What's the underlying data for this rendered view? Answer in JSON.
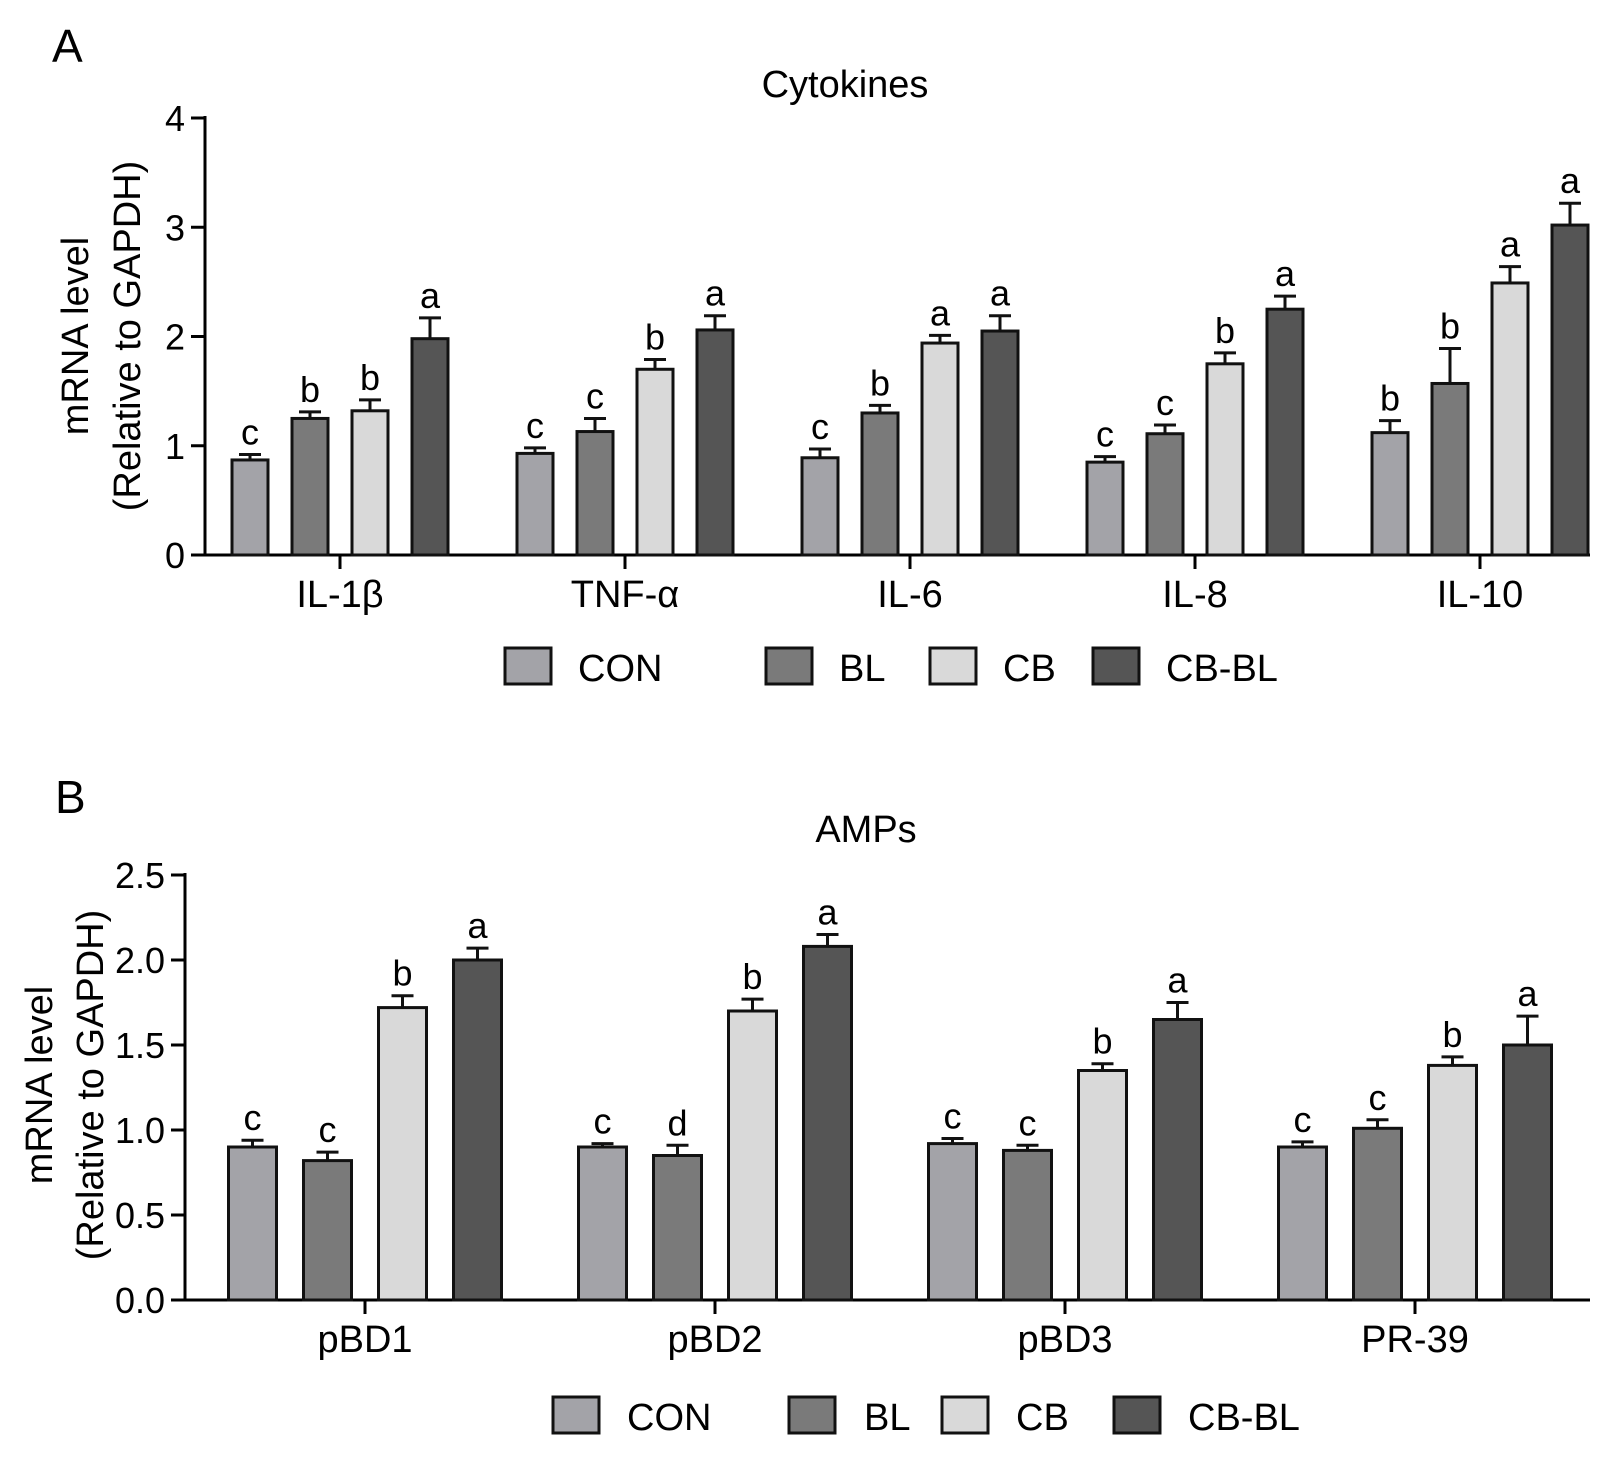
{
  "chart_data": [
    {
      "type": "bar",
      "panel_label": "A",
      "title": "Cytokines",
      "ylabel_line1": "mRNA level",
      "ylabel_line2": "(Relative to GAPDH)",
      "xlabel": "",
      "ylim": [
        0,
        4
      ],
      "yticks": [
        "0",
        "1",
        "2",
        "3",
        "4"
      ],
      "categories": [
        "IL-1β",
        "TNF-α",
        "IL-6",
        "IL-8",
        "IL-10"
      ],
      "series": [
        {
          "name": "CON",
          "color": "#a3a3a8",
          "values": [
            0.87,
            0.93,
            0.89,
            0.85,
            1.12
          ],
          "errors": [
            0.05,
            0.05,
            0.08,
            0.05,
            0.11
          ],
          "letters": [
            "c",
            "c",
            "c",
            "c",
            "b"
          ]
        },
        {
          "name": "BL",
          "color": "#7a7a7a",
          "values": [
            1.25,
            1.13,
            1.3,
            1.11,
            1.57
          ],
          "errors": [
            0.06,
            0.12,
            0.07,
            0.08,
            0.32
          ],
          "letters": [
            "b",
            "c",
            "b",
            "c",
            "b"
          ]
        },
        {
          "name": "CB",
          "color": "#d9d9d9",
          "values": [
            1.32,
            1.7,
            1.94,
            1.75,
            2.49
          ],
          "errors": [
            0.1,
            0.09,
            0.07,
            0.1,
            0.15
          ],
          "letters": [
            "b",
            "b",
            "a",
            "b",
            "a"
          ]
        },
        {
          "name": "CB-BL",
          "color": "#555555",
          "values": [
            1.98,
            2.06,
            2.05,
            2.25,
            3.02
          ],
          "errors": [
            0.19,
            0.13,
            0.14,
            0.12,
            0.2
          ],
          "letters": [
            "a",
            "a",
            "a",
            "a",
            "a"
          ]
        }
      ],
      "legend_position": "bottom"
    },
    {
      "type": "bar",
      "panel_label": "B",
      "title": "AMPs",
      "ylabel_line1": "mRNA level",
      "ylabel_line2": "(Relative to GAPDH)",
      "xlabel": "",
      "ylim": [
        0,
        2.5
      ],
      "yticks": [
        "0.0",
        "0.5",
        "1.0",
        "1.5",
        "2.0",
        "2.5"
      ],
      "categories": [
        "pBD1",
        "pBD2",
        "pBD3",
        "PR-39"
      ],
      "series": [
        {
          "name": "CON",
          "color": "#a3a3a8",
          "values": [
            0.9,
            0.9,
            0.92,
            0.9
          ],
          "errors": [
            0.04,
            0.02,
            0.03,
            0.03
          ],
          "letters": [
            "c",
            "c",
            "c",
            "c"
          ]
        },
        {
          "name": "BL",
          "color": "#7a7a7a",
          "values": [
            0.82,
            0.85,
            0.88,
            1.01
          ],
          "errors": [
            0.05,
            0.06,
            0.03,
            0.05
          ],
          "letters": [
            "c",
            "d",
            "c",
            "c"
          ]
        },
        {
          "name": "CB",
          "color": "#d9d9d9",
          "values": [
            1.72,
            1.7,
            1.35,
            1.38
          ],
          "errors": [
            0.07,
            0.07,
            0.04,
            0.05
          ],
          "letters": [
            "b",
            "b",
            "b",
            "b"
          ]
        },
        {
          "name": "CB-BL",
          "color": "#555555",
          "values": [
            2.0,
            2.08,
            1.65,
            1.5
          ],
          "errors": [
            0.07,
            0.07,
            0.1,
            0.17
          ],
          "letters": [
            "a",
            "a",
            "a",
            "a"
          ]
        }
      ],
      "legend_position": "bottom"
    }
  ]
}
